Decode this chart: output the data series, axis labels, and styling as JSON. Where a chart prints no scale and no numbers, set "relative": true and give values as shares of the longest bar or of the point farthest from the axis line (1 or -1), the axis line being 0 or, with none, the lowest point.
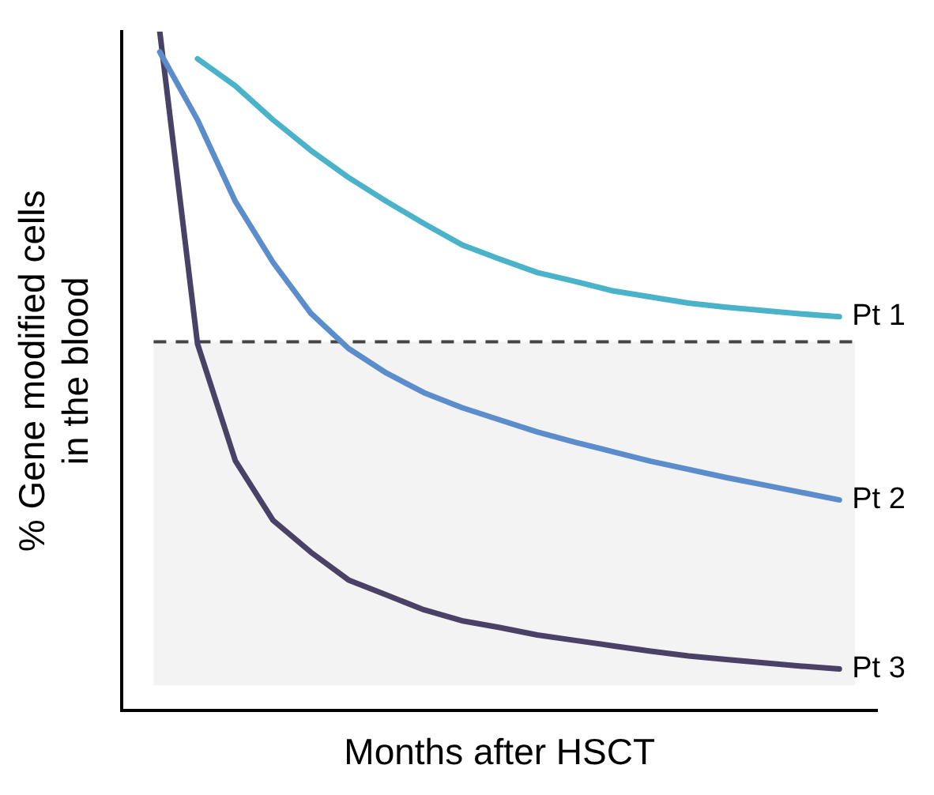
{
  "chart_data": {
    "type": "line",
    "relative": true,
    "xlabel": "Months after HSCT",
    "ylabel": "% Gene modified cells\nin the blood",
    "legend": false,
    "grid": false,
    "marker": "none",
    "line_style": "solid",
    "tick_labels": false,
    "categories": [
      null,
      null,
      null,
      null,
      null,
      null,
      null,
      null,
      null,
      null,
      null,
      null,
      null,
      null,
      null,
      null,
      null,
      null,
      null,
      null,
      null
    ],
    "series": [
      {
        "name": "Pt 1",
        "color": "#4ab3c9",
        "values": [
          null,
          null,
          0.96,
          0.92,
          0.87,
          0.825,
          0.785,
          0.75,
          0.717,
          0.686,
          0.665,
          0.645,
          0.632,
          0.618,
          0.609,
          0.6,
          0.594,
          0.589,
          0.584,
          0.58,
          null
        ]
      },
      {
        "name": "Pt 2",
        "color": "#5b8ccb",
        "values": [
          null,
          0.97,
          0.87,
          0.75,
          0.66,
          0.585,
          0.533,
          0.497,
          0.468,
          0.446,
          0.428,
          0.41,
          0.395,
          0.381,
          0.367,
          0.355,
          0.343,
          0.332,
          0.321,
          0.31,
          null
        ]
      },
      {
        "name": "Pt 3",
        "color": "#4a4266",
        "values": [
          null,
          1,
          0.54,
          0.368,
          0.28,
          0.233,
          0.192,
          0.17,
          0.148,
          0.132,
          0.122,
          0.111,
          0.103,
          0.095,
          0.087,
          0.08,
          0.075,
          0.07,
          0.065,
          0.061,
          null
        ]
      }
    ],
    "bands": [
      {
        "axis": "y",
        "from": 0.037,
        "to": 0.543,
        "color": "#f3f3f3"
      }
    ],
    "ref_lines": [
      {
        "axis": "y",
        "value": 0.543,
        "color": "#444444",
        "line_style": "dashed"
      }
    ]
  }
}
